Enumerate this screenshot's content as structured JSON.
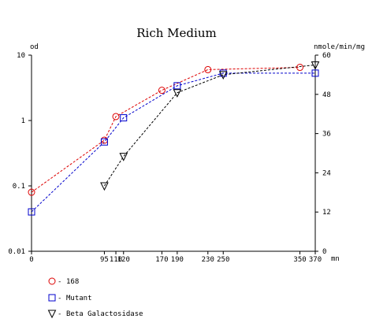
{
  "chart_data": {
    "type": "line",
    "title": "Rich Medium",
    "xlabel": "mn",
    "ylabel_left": "od",
    "ylabel_right": "nmole/min/mg",
    "xlim": [
      0,
      370
    ],
    "ylim_left": [
      0.01,
      10
    ],
    "y_left_scale": "log",
    "ylim_right": [
      0,
      60
    ],
    "x_ticks": [
      "0",
      "95",
      "110",
      "120",
      "170",
      "190",
      "230",
      "250",
      "350",
      "370"
    ],
    "x_tick_values": [
      0,
      95,
      110,
      120,
      170,
      190,
      230,
      250,
      350,
      370
    ],
    "y_left_ticks": [
      "0.01",
      "0.1",
      "1",
      "10"
    ],
    "y_left_tick_values": [
      0.01,
      0.1,
      1,
      10
    ],
    "y_right_ticks": [
      "0",
      "12",
      "24",
      "36",
      "48",
      "60"
    ],
    "y_right_tick_values": [
      0,
      12,
      24,
      36,
      48,
      60
    ],
    "grid": false,
    "legend_position": "bottom-left",
    "series": [
      {
        "name": "168",
        "axis": "left",
        "color": "#dd0000",
        "marker": "circle",
        "x": [
          0,
          95,
          110,
          170,
          230,
          350
        ],
        "values": [
          0.08,
          0.5,
          1.15,
          2.9,
          6.0,
          6.5
        ]
      },
      {
        "name": "Mutant",
        "axis": "left",
        "color": "#0000cc",
        "marker": "square",
        "x": [
          0,
          95,
          120,
          190,
          250,
          370
        ],
        "values": [
          0.04,
          0.47,
          1.1,
          3.4,
          5.3,
          5.3
        ]
      },
      {
        "name": "Beta Galactosidase",
        "axis": "right",
        "color": "#000000",
        "marker": "triangle-down",
        "x": [
          95,
          120,
          190,
          250,
          370
        ],
        "values": [
          20,
          29,
          48.5,
          54,
          57
        ]
      }
    ]
  }
}
